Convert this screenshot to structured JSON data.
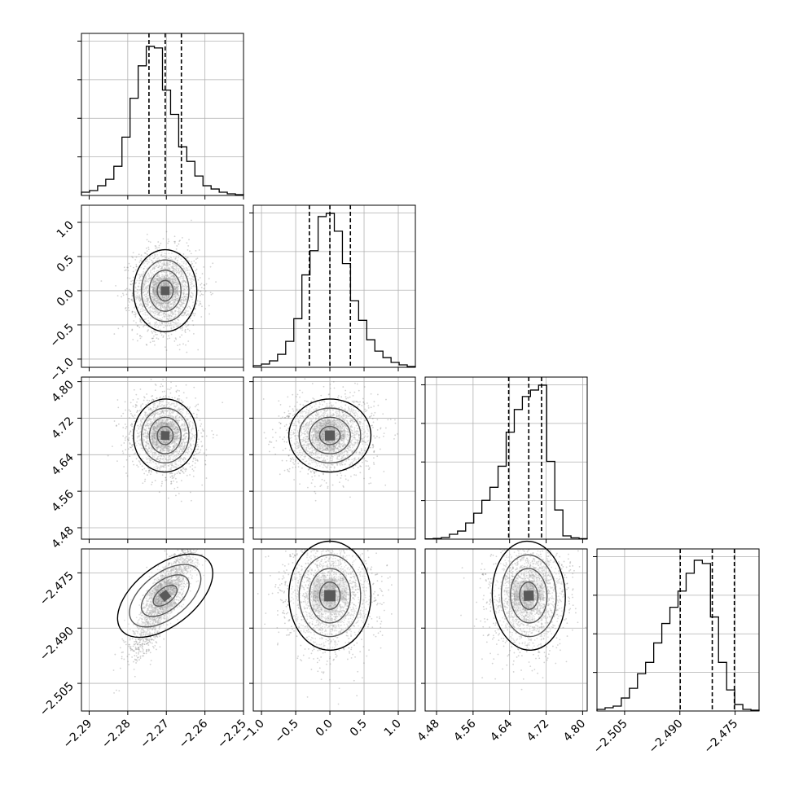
{
  "chart_data": {
    "type": "corner",
    "parameters": 4,
    "colors": {
      "ink": "#000000",
      "grid": "#b0b0b0",
      "scatter": "#7f7f7f"
    },
    "params": [
      {
        "range": [
          -2.292,
          -2.25
        ],
        "ticks": [
          -2.29,
          -2.28,
          -2.27,
          -2.26,
          -2.25
        ],
        "tick_labels": [
          "−2.29",
          "−2.28",
          "−2.27",
          "−2.26",
          "−2.25"
        ],
        "quantiles": [
          -2.2745,
          -2.2703,
          -2.2661
        ],
        "center": -2.2703,
        "sigma": 0.0041
      },
      {
        "range": [
          -1.12,
          1.25
        ],
        "ticks": [
          -1.0,
          -0.5,
          0.0,
          0.5,
          1.0
        ],
        "tick_labels": [
          "−1.0",
          "−0.5",
          "0.0",
          "0.5",
          "1.0"
        ],
        "quantiles": [
          -0.3,
          0.0,
          0.3
        ],
        "center": 0.0,
        "sigma": 0.3
      },
      {
        "range": [
          4.455,
          4.81
        ],
        "ticks": [
          4.48,
          4.56,
          4.64,
          4.72,
          4.8
        ],
        "tick_labels": [
          "4.48",
          "4.56",
          "4.64",
          "4.72",
          "4.80"
        ],
        "quantiles": [
          4.638,
          4.682,
          4.71
        ],
        "center": 4.682,
        "sigma": 0.04
      },
      {
        "range": [
          -2.5125,
          -2.4685
        ],
        "ticks": [
          -2.505,
          -2.49,
          -2.475
        ],
        "tick_labels": [
          "−2.505",
          "−2.490",
          "−2.475"
        ],
        "quantiles": [
          -2.4899,
          -2.4812,
          -2.4752
        ],
        "center": -2.4812,
        "sigma": 0.0074
      }
    ],
    "histograms": [
      {
        "param": 0,
        "bin_edges_count": 20,
        "counts": [
          0.02,
          0.03,
          0.06,
          0.1,
          0.18,
          0.36,
          0.6,
          0.8,
          0.92,
          0.91,
          0.65,
          0.5,
          0.3,
          0.21,
          0.12,
          0.06,
          0.04,
          0.02,
          0.01,
          0.005
        ]
      },
      {
        "param": 1,
        "bin_edges_count": 20,
        "counts": [
          0.01,
          0.02,
          0.04,
          0.08,
          0.16,
          0.3,
          0.57,
          0.72,
          0.93,
          0.95,
          0.84,
          0.64,
          0.41,
          0.29,
          0.17,
          0.1,
          0.06,
          0.03,
          0.015,
          0.005
        ]
      },
      {
        "param": 2,
        "bin_edges_count": 20,
        "counts": [
          0.002,
          0.004,
          0.01,
          0.03,
          0.05,
          0.1,
          0.16,
          0.24,
          0.32,
          0.45,
          0.66,
          0.8,
          0.88,
          0.92,
          0.95,
          0.48,
          0.18,
          0.02,
          0.008,
          0.003
        ]
      },
      {
        "param": 3,
        "bin_edges_count": 20,
        "counts": [
          0.01,
          0.02,
          0.03,
          0.08,
          0.14,
          0.23,
          0.3,
          0.42,
          0.54,
          0.64,
          0.74,
          0.85,
          0.93,
          0.91,
          0.58,
          0.3,
          0.13,
          0.04,
          0.01,
          0.005
        ]
      }
    ],
    "pairs": [
      {
        "x_param": 0,
        "y_param": 1,
        "correlation": 0.0
      },
      {
        "x_param": 0,
        "y_param": 2,
        "correlation": -0.1
      },
      {
        "x_param": 1,
        "y_param": 2,
        "correlation": 0.05
      },
      {
        "x_param": 0,
        "y_param": 3,
        "correlation": 0.85,
        "bimodal": true
      },
      {
        "x_param": 1,
        "y_param": 3,
        "correlation": 0.0
      },
      {
        "x_param": 2,
        "y_param": 3,
        "correlation": 0.1
      }
    ],
    "contour_levels": [
      0.5,
      1.0,
      1.5,
      2.0
    ],
    "grid": true,
    "samples_per_panel": 2200
  }
}
